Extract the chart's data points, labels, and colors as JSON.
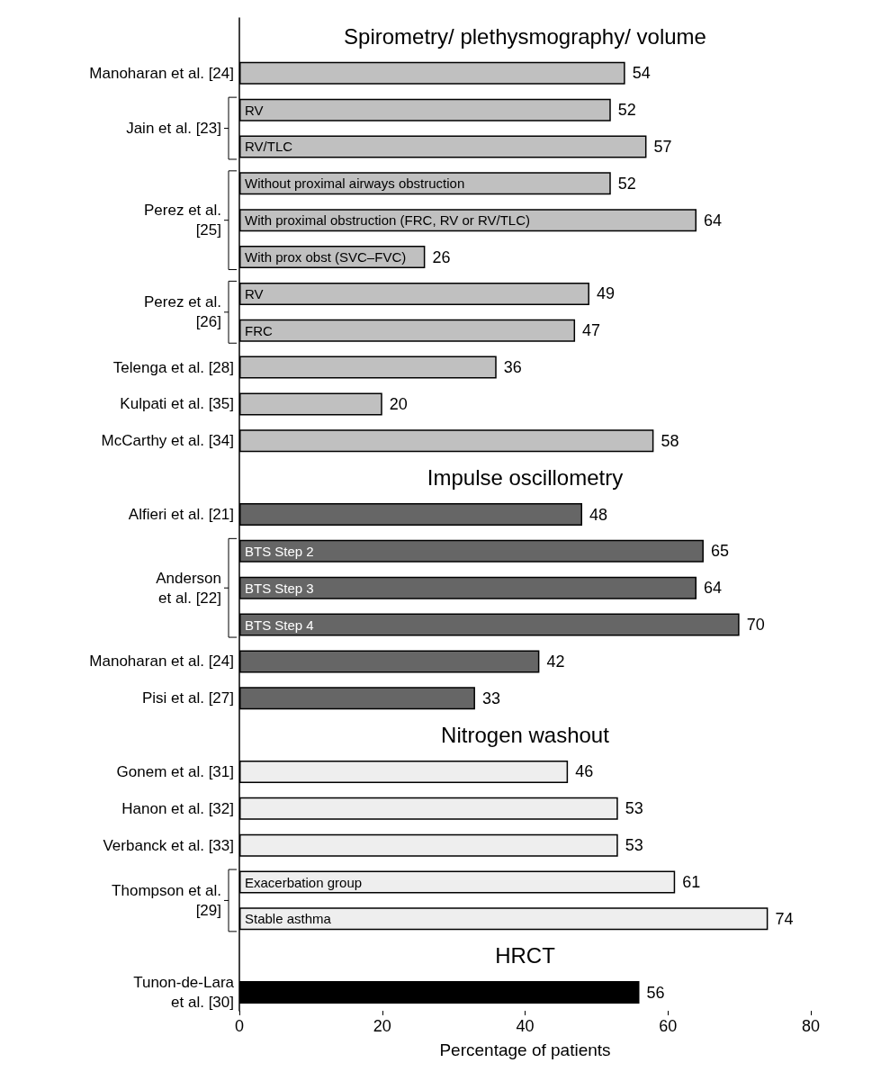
{
  "chart_data": {
    "type": "bar",
    "orientation": "horizontal",
    "xlabel": "Percentage of patients",
    "xlim": [
      0,
      80
    ],
    "xticks": [
      0,
      20,
      40,
      60,
      80
    ],
    "data_labels": true,
    "legend": "left",
    "annotations": [
      "Spirometry/ plethysmography/ volume",
      "Impulse oscillometry",
      "Nitrogen washout",
      "HRCT"
    ],
    "categories": [
      null,
      null,
      "RV",
      "RV/TLC",
      "Without proximal airways obstruction",
      "With proximal obstruction (FRC, RV or RV/TLC)",
      "With prox obst (SVC–FVC)",
      "RV",
      "FRC",
      null,
      null,
      null,
      null,
      null,
      "BTS Step 2",
      "BTS Step 3",
      "BTS Step 4",
      null,
      null,
      null,
      null,
      null,
      null,
      "Exacerbation group",
      "Stable asthma",
      null,
      null
    ],
    "series": [
      {
        "name": "Manoharan et al. [24]",
        "color": "#c0c0c0",
        "values": [
          null,
          54,
          null,
          null,
          null,
          null,
          null,
          null,
          null,
          null,
          null,
          null,
          null,
          null,
          null,
          null,
          null,
          null,
          null,
          null,
          null,
          null,
          null,
          null,
          null,
          null,
          null
        ]
      },
      {
        "name": "Jain et al. [23]",
        "color": "#c0c0c0",
        "values": [
          null,
          null,
          52,
          57,
          null,
          null,
          null,
          null,
          null,
          null,
          null,
          null,
          null,
          null,
          null,
          null,
          null,
          null,
          null,
          null,
          null,
          null,
          null,
          null,
          null,
          null,
          null
        ]
      },
      {
        "name": "Perez et al.\n[25]",
        "color": "#c0c0c0",
        "values": [
          null,
          null,
          null,
          null,
          52,
          64,
          26,
          null,
          null,
          null,
          null,
          null,
          null,
          null,
          null,
          null,
          null,
          null,
          null,
          null,
          null,
          null,
          null,
          null,
          null,
          null,
          null
        ]
      },
      {
        "name": "Perez et al.\n[26]",
        "color": "#c0c0c0",
        "values": [
          null,
          null,
          null,
          null,
          null,
          null,
          null,
          49,
          47,
          null,
          null,
          null,
          null,
          null,
          null,
          null,
          null,
          null,
          null,
          null,
          null,
          null,
          null,
          null,
          null,
          null,
          null
        ]
      },
      {
        "name": "Telenga et al. [28]",
        "color": "#c0c0c0",
        "values": [
          null,
          null,
          null,
          null,
          null,
          null,
          null,
          null,
          null,
          36,
          null,
          null,
          null,
          null,
          null,
          null,
          null,
          null,
          null,
          null,
          null,
          null,
          null,
          null,
          null,
          null,
          null
        ]
      },
      {
        "name": "Kulpati et al. [35]",
        "color": "#c0c0c0",
        "values": [
          null,
          null,
          null,
          null,
          null,
          null,
          null,
          null,
          null,
          null,
          20,
          null,
          null,
          null,
          null,
          null,
          null,
          null,
          null,
          null,
          null,
          null,
          null,
          null,
          null,
          null,
          null
        ]
      },
      {
        "name": "McCarthy et al. [34]",
        "color": "#c0c0c0",
        "values": [
          null,
          null,
          null,
          null,
          null,
          null,
          null,
          null,
          null,
          null,
          null,
          58,
          null,
          null,
          null,
          null,
          null,
          null,
          null,
          null,
          null,
          null,
          null,
          null,
          null,
          null,
          null
        ]
      },
      {
        "name": "Alfieri et al. [21]",
        "color": "#666666",
        "values": [
          null,
          null,
          null,
          null,
          null,
          null,
          null,
          null,
          null,
          null,
          null,
          null,
          null,
          48,
          null,
          null,
          null,
          null,
          null,
          null,
          null,
          null,
          null,
          null,
          null,
          null,
          null
        ]
      },
      {
        "name": "Anderson\net al. [22]",
        "color": "#666666",
        "values": [
          null,
          null,
          null,
          null,
          null,
          null,
          null,
          null,
          null,
          null,
          null,
          null,
          null,
          null,
          65,
          64,
          70,
          null,
          null,
          null,
          null,
          null,
          null,
          null,
          null,
          null,
          null
        ]
      },
      {
        "name": "Manoharan et al. [24]",
        "color": "#666666",
        "values": [
          null,
          null,
          null,
          null,
          null,
          null,
          null,
          null,
          null,
          null,
          null,
          null,
          null,
          null,
          null,
          null,
          null,
          42,
          null,
          null,
          null,
          null,
          null,
          null,
          null,
          null,
          null
        ]
      },
      {
        "name": "Pisi et al. [27]",
        "color": "#666666",
        "values": [
          null,
          null,
          null,
          null,
          null,
          null,
          null,
          null,
          null,
          null,
          null,
          null,
          null,
          null,
          null,
          null,
          null,
          null,
          33,
          null,
          null,
          null,
          null,
          null,
          null,
          null,
          null
        ]
      },
      {
        "name": "Gonem et al. [31]",
        "color": "#eeeeee",
        "values": [
          null,
          null,
          null,
          null,
          null,
          null,
          null,
          null,
          null,
          null,
          null,
          null,
          null,
          null,
          null,
          null,
          null,
          null,
          null,
          null,
          46,
          null,
          null,
          null,
          null,
          null,
          null
        ]
      },
      {
        "name": "Hanon et al. [32]",
        "color": "#eeeeee",
        "values": [
          null,
          null,
          null,
          null,
          null,
          null,
          null,
          null,
          null,
          null,
          null,
          null,
          null,
          null,
          null,
          null,
          null,
          null,
          null,
          null,
          null,
          53,
          null,
          null,
          null,
          null,
          null
        ]
      },
      {
        "name": "Verbanck et al. [33]",
        "color": "#eeeeee",
        "values": [
          null,
          null,
          null,
          null,
          null,
          null,
          null,
          null,
          null,
          null,
          null,
          null,
          null,
          null,
          null,
          null,
          null,
          null,
          null,
          null,
          null,
          null,
          53,
          null,
          null,
          null,
          null
        ]
      },
      {
        "name": "Thompson et al.\n[29]",
        "color": "#eeeeee",
        "values": [
          null,
          null,
          null,
          null,
          null,
          null,
          null,
          null,
          null,
          null,
          null,
          null,
          null,
          null,
          null,
          null,
          null,
          null,
          null,
          null,
          null,
          null,
          null,
          61,
          74,
          null,
          null
        ]
      },
      {
        "name": "Tunon-de-Lara\net al. [30]",
        "color": "#000000",
        "values": [
          null,
          null,
          null,
          null,
          null,
          null,
          null,
          null,
          null,
          null,
          null,
          null,
          null,
          null,
          null,
          null,
          null,
          null,
          null,
          null,
          null,
          null,
          null,
          null,
          null,
          null,
          56
        ]
      }
    ]
  }
}
